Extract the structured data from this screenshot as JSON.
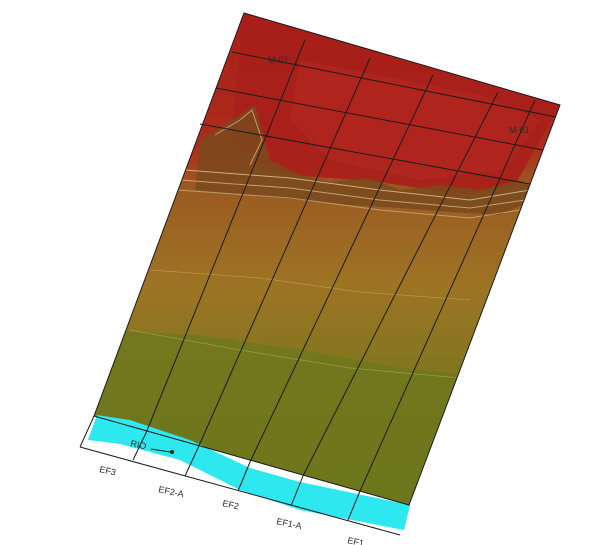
{
  "view": {
    "grid_labels": {
      "m01_top": "M-01",
      "m01_right": "M-01"
    },
    "section_labels": [
      "EF3",
      "EF2-A",
      "EF2",
      "EF1-A",
      "EF1"
    ],
    "river_label": "RIO"
  },
  "colors": {
    "red_high": "#a81f18",
    "red_mid": "#b8301f",
    "brown_upper": "#a05a20",
    "ochre_mid": "#9a7a22",
    "olive_low": "#6e7a1c",
    "river": "#2ee8f0",
    "grid_line": "#1b1b1b",
    "contour": "#e9d7b4"
  }
}
